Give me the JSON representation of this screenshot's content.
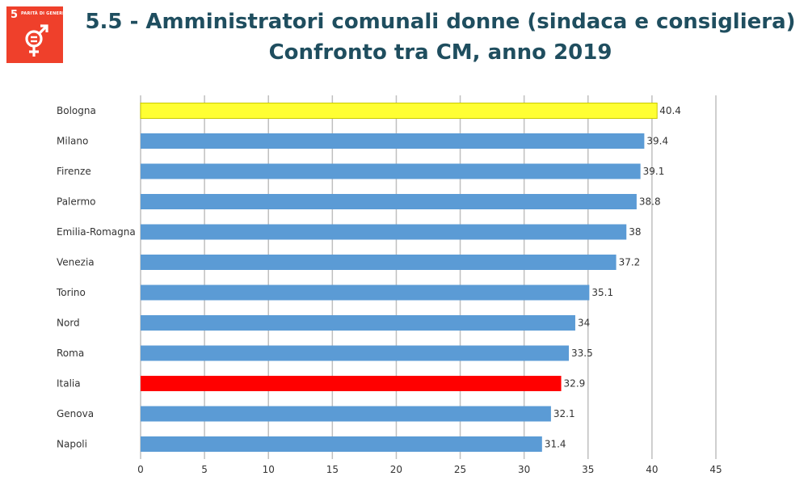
{
  "badge": {
    "number": "5",
    "goal_text": "PARITÀ DI GENERE",
    "icon": "gender-equality-icon"
  },
  "title": {
    "line1": "5.5 - Amministratori comunali donne (sindaca e consigliera)",
    "line2": "Confronto tra CM, anno 2019"
  },
  "chart_data": {
    "type": "bar",
    "orientation": "horizontal",
    "categories": [
      "Bologna",
      "Milano",
      "Firenze",
      "Palermo",
      "Emilia-Romagna",
      "Venezia",
      "Torino",
      "Nord",
      "Roma",
      "Italia",
      "Genova",
      "Napoli"
    ],
    "values": [
      40.4,
      39.4,
      39.1,
      38.8,
      38,
      37.2,
      35.1,
      34,
      33.5,
      32.9,
      32.1,
      31.4
    ],
    "value_labels": [
      "40.4",
      "39.4",
      "39.1",
      "38.8",
      "38",
      "37.2",
      "35.1",
      "34",
      "33.5",
      "32.9",
      "32.1",
      "31.4"
    ],
    "bar_colors": [
      "#ffff33",
      "#5b9bd5",
      "#5b9bd5",
      "#5b9bd5",
      "#5b9bd5",
      "#5b9bd5",
      "#5b9bd5",
      "#5b9bd5",
      "#5b9bd5",
      "#ff0000",
      "#5b9bd5",
      "#5b9bd5"
    ],
    "xlim": [
      0,
      45
    ],
    "xticks": [
      0,
      5,
      10,
      15,
      20,
      25,
      30,
      35,
      40,
      45
    ],
    "xtick_labels": [
      "0",
      "5",
      "10",
      "15",
      "20",
      "25",
      "30",
      "35",
      "40",
      "45"
    ],
    "grid": "vertical",
    "title": "",
    "xlabel": "",
    "ylabel": ""
  }
}
